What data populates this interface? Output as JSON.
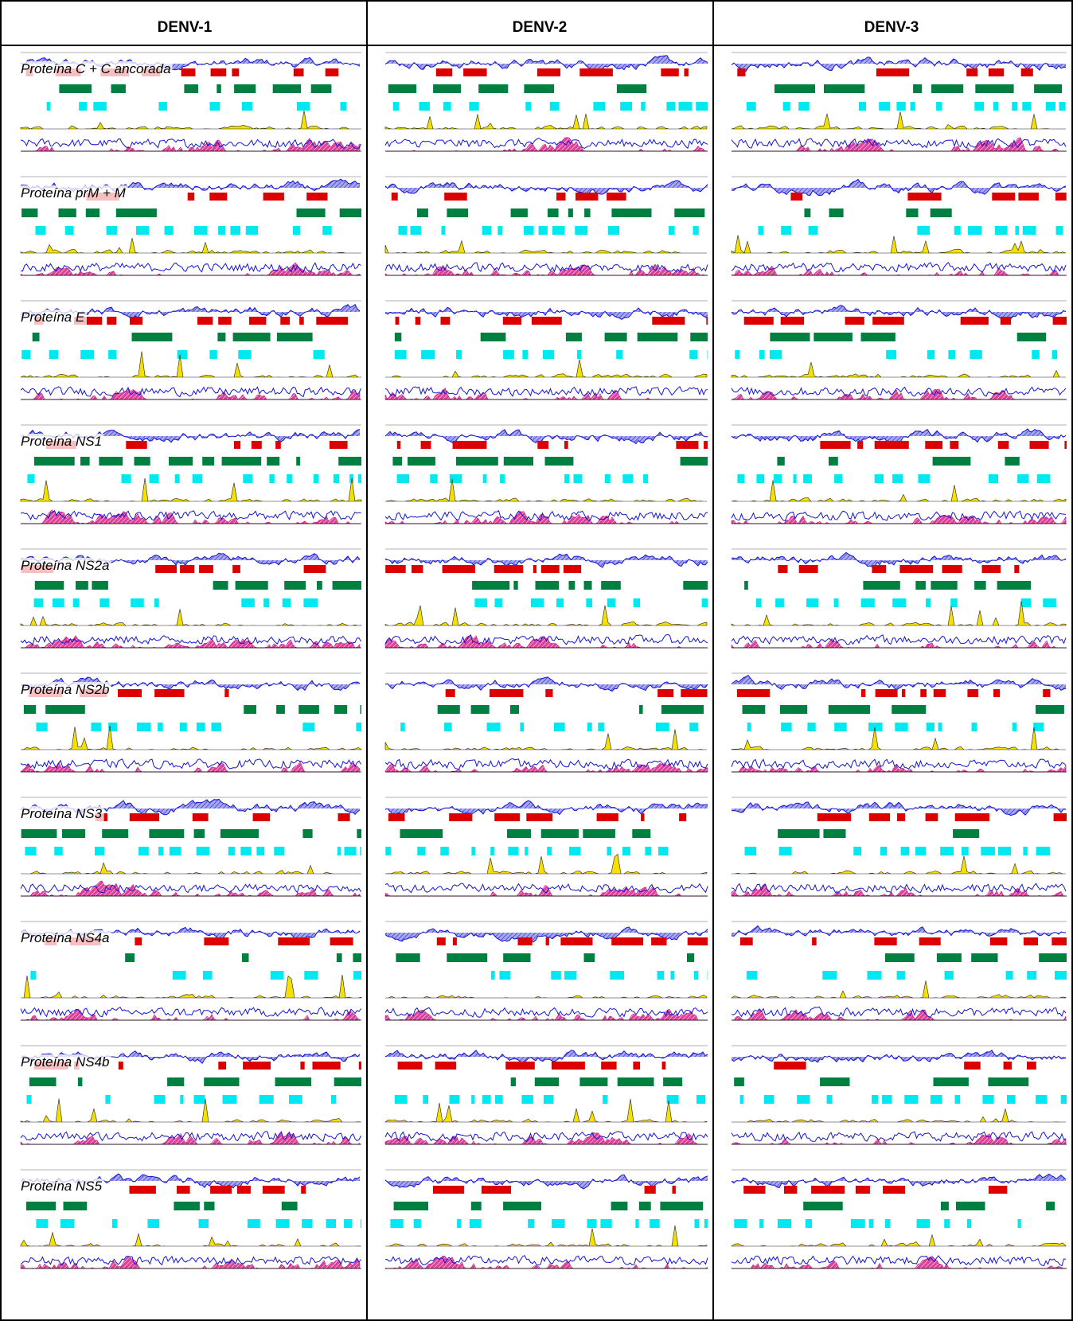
{
  "header": {
    "columns": [
      "DENV-1",
      "DENV-2",
      "DENV-3"
    ]
  },
  "rows": [
    {
      "label": "Proteína C + C ancorada"
    },
    {
      "label": "Proteína prM + M"
    },
    {
      "label": "Proteína E"
    },
    {
      "label": "Proteína NS1"
    },
    {
      "label": "Proteína NS2a"
    },
    {
      "label": "Proteína NS2b"
    },
    {
      "label": "Proteína NS3"
    },
    {
      "label": "Proteína NS4a"
    },
    {
      "label": "Proteína NS4b"
    },
    {
      "label": "Proteína NS5"
    }
  ]
}
